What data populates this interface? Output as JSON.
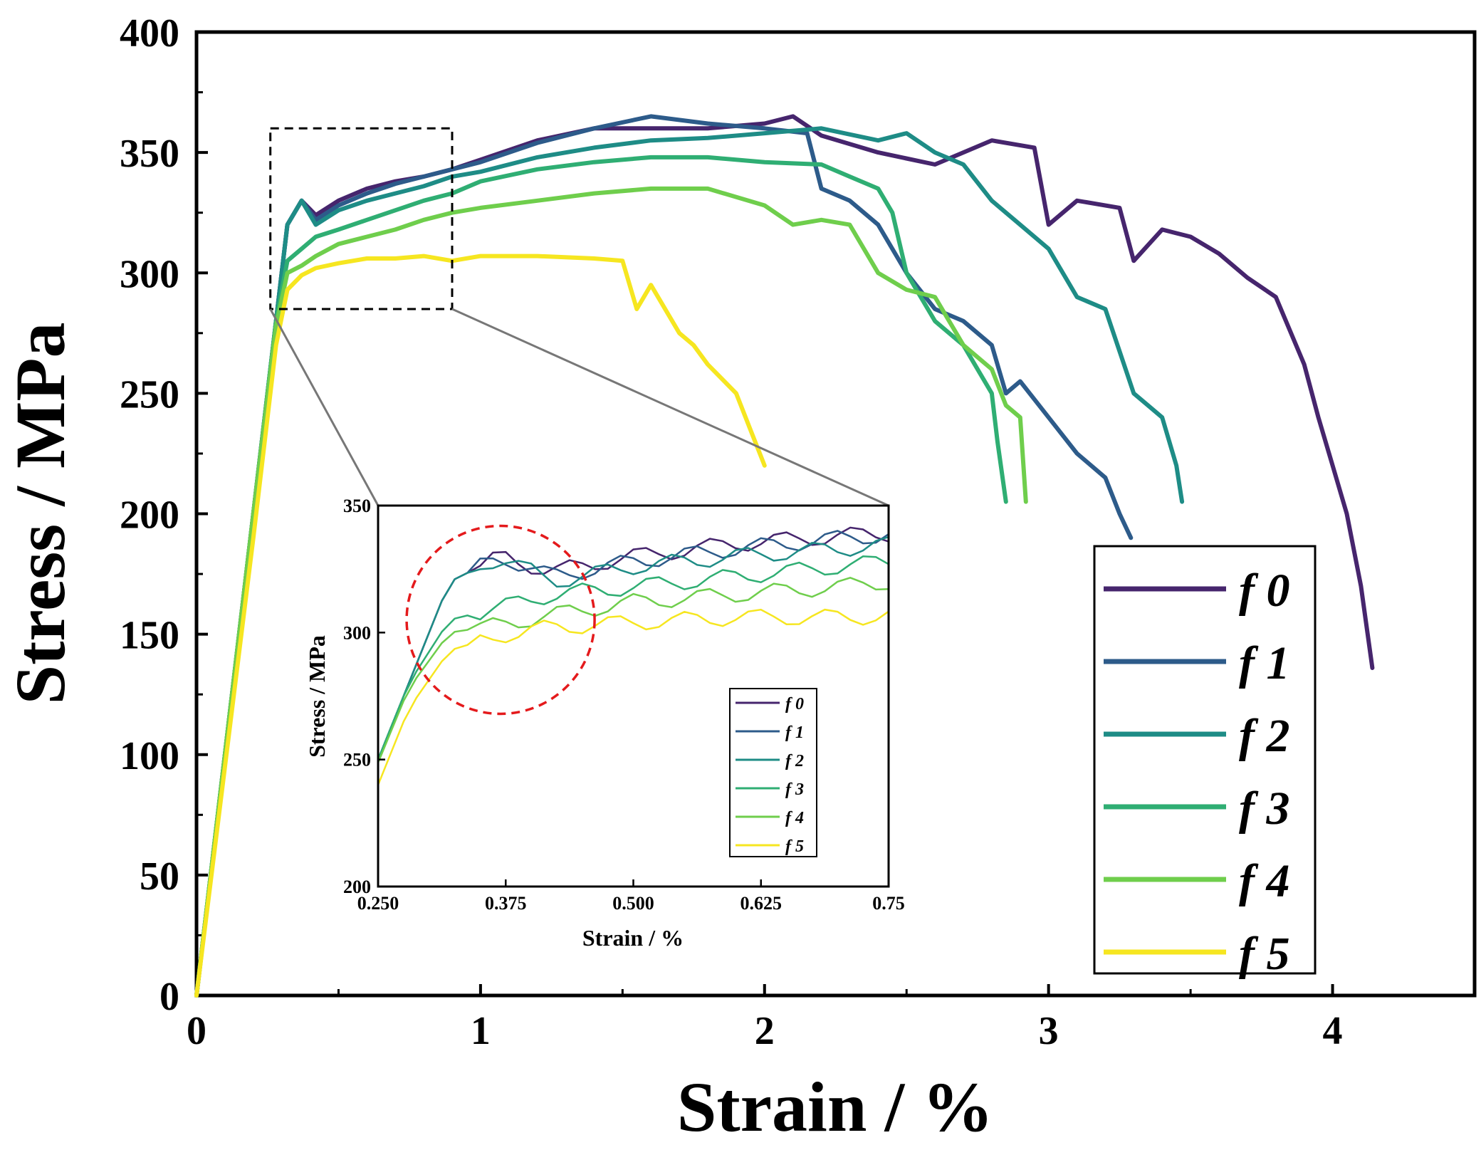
{
  "chart_data": {
    "type": "line",
    "xlabel": "Strain / %",
    "ylabel": "Stress / MPa",
    "xlim": [
      0,
      4.5
    ],
    "ylim": [
      0,
      400
    ],
    "xticks": [
      "0",
      "1",
      "2",
      "3",
      "4"
    ],
    "yticks": [
      "0",
      "50",
      "100",
      "150",
      "200",
      "250",
      "300",
      "350",
      "400"
    ],
    "legend_position": "bottom-right",
    "colors": {
      "f0": "#46256d",
      "f1": "#2d5b8a",
      "f2": "#1e8c86",
      "f3": "#2fae73",
      "f4": "#6fce4c",
      "f5": "#f6e620"
    },
    "series": [
      {
        "name": "f0",
        "label_f": "f",
        "label_n": "0",
        "x": [
          0,
          0.1,
          0.2,
          0.28,
          0.32,
          0.37,
          0.42,
          0.5,
          0.6,
          0.7,
          0.8,
          0.9,
          1.0,
          1.2,
          1.4,
          1.6,
          1.8,
          2.0,
          2.1,
          2.2,
          2.4,
          2.6,
          2.8,
          2.95,
          3.0,
          3.1,
          3.25,
          3.3,
          3.4,
          3.5,
          3.6,
          3.7,
          3.8,
          3.9,
          3.95,
          4.0,
          4.05,
          4.1,
          4.14
        ],
        "y": [
          0,
          100,
          200,
          280,
          320,
          330,
          324,
          330,
          335,
          338,
          340,
          343,
          347,
          355,
          360,
          360,
          360,
          362,
          365,
          357,
          350,
          345,
          355,
          352,
          320,
          330,
          327,
          305,
          318,
          315,
          308,
          298,
          290,
          262,
          240,
          220,
          200,
          170,
          136
        ]
      },
      {
        "name": "f1",
        "label_f": "f",
        "label_n": "1",
        "x": [
          0,
          0.1,
          0.2,
          0.28,
          0.32,
          0.37,
          0.42,
          0.5,
          0.6,
          0.7,
          0.8,
          0.9,
          1.0,
          1.2,
          1.4,
          1.6,
          1.8,
          2.0,
          2.15,
          2.2,
          2.3,
          2.4,
          2.5,
          2.6,
          2.7,
          2.8,
          2.85,
          2.9,
          3.0,
          3.1,
          3.2,
          3.25,
          3.29
        ],
        "y": [
          0,
          100,
          200,
          280,
          320,
          330,
          322,
          328,
          333,
          337,
          340,
          343,
          346,
          354,
          360,
          365,
          362,
          360,
          358,
          335,
          330,
          320,
          300,
          285,
          280,
          270,
          250,
          255,
          240,
          225,
          215,
          200,
          190
        ]
      },
      {
        "name": "f2",
        "label_f": "f",
        "label_n": "2",
        "x": [
          0,
          0.1,
          0.2,
          0.28,
          0.32,
          0.37,
          0.42,
          0.5,
          0.6,
          0.7,
          0.8,
          0.9,
          1.0,
          1.2,
          1.4,
          1.6,
          1.8,
          2.0,
          2.2,
          2.4,
          2.5,
          2.6,
          2.7,
          2.8,
          2.9,
          3.0,
          3.1,
          3.2,
          3.3,
          3.35,
          3.4,
          3.45,
          3.47
        ],
        "y": [
          0,
          100,
          200,
          280,
          320,
          330,
          320,
          326,
          330,
          333,
          336,
          340,
          342,
          348,
          352,
          355,
          356,
          358,
          360,
          355,
          358,
          350,
          345,
          330,
          320,
          310,
          290,
          285,
          250,
          245,
          240,
          220,
          205
        ]
      },
      {
        "name": "f3",
        "label_f": "f",
        "label_n": "3",
        "x": [
          0,
          0.1,
          0.2,
          0.28,
          0.32,
          0.37,
          0.42,
          0.5,
          0.6,
          0.7,
          0.8,
          0.9,
          1.0,
          1.2,
          1.4,
          1.6,
          1.8,
          2.0,
          2.2,
          2.3,
          2.4,
          2.45,
          2.5,
          2.6,
          2.7,
          2.8,
          2.82,
          2.85
        ],
        "y": [
          0,
          100,
          200,
          280,
          305,
          310,
          315,
          318,
          322,
          326,
          330,
          333,
          338,
          343,
          346,
          348,
          348,
          346,
          345,
          340,
          335,
          325,
          300,
          280,
          270,
          250,
          230,
          205
        ]
      },
      {
        "name": "f4",
        "label_f": "f",
        "label_n": "4",
        "x": [
          0,
          0.1,
          0.2,
          0.28,
          0.32,
          0.37,
          0.42,
          0.5,
          0.6,
          0.7,
          0.8,
          0.9,
          1.0,
          1.2,
          1.4,
          1.6,
          1.8,
          2.0,
          2.1,
          2.2,
          2.3,
          2.4,
          2.5,
          2.6,
          2.7,
          2.8,
          2.85,
          2.9,
          2.92
        ],
        "y": [
          0,
          100,
          200,
          278,
          300,
          303,
          307,
          312,
          315,
          318,
          322,
          325,
          327,
          330,
          333,
          335,
          335,
          328,
          320,
          322,
          320,
          300,
          293,
          290,
          270,
          260,
          245,
          240,
          205
        ]
      },
      {
        "name": "f5",
        "label_f": "f",
        "label_n": "5",
        "x": [
          0,
          0.1,
          0.2,
          0.28,
          0.32,
          0.37,
          0.42,
          0.5,
          0.6,
          0.7,
          0.8,
          0.9,
          1.0,
          1.2,
          1.4,
          1.5,
          1.55,
          1.6,
          1.7,
          1.75,
          1.8,
          1.9,
          1.95,
          2.0
        ],
        "y": [
          0,
          95,
          190,
          270,
          293,
          299,
          302,
          304,
          306,
          306,
          307,
          305,
          307,
          307,
          306,
          305,
          285,
          295,
          275,
          270,
          262,
          250,
          235,
          220
        ]
      }
    ],
    "inset": {
      "xlabel": "Strain / %",
      "ylabel": "Stress / MPa",
      "xlim": [
        0.25,
        0.75
      ],
      "ylim": [
        200,
        350
      ],
      "xticks": [
        "0.250",
        "0.375",
        "0.500",
        "0.625",
        "0.75"
      ],
      "yticks": [
        "200",
        "250",
        "300",
        "350"
      ],
      "highlight_circle": {
        "center": [
          0.37,
          305
        ],
        "color": "#e41a1c"
      },
      "zoom_region": {
        "x": [
          0.26,
          0.9
        ],
        "y": [
          285,
          360
        ]
      }
    }
  }
}
